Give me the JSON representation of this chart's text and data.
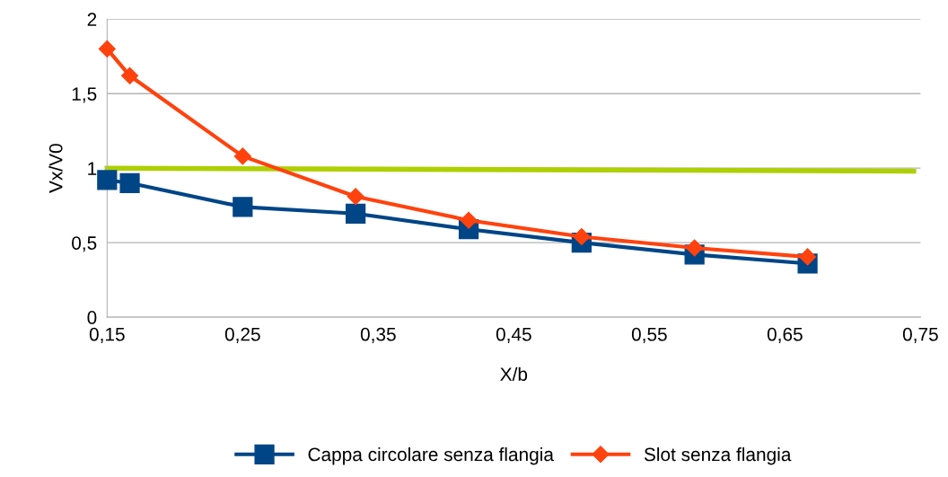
{
  "chart_data": {
    "type": "line",
    "xlabel": "X/b",
    "ylabel": "Vx/V0",
    "xlim": [
      0.15,
      0.75
    ],
    "ylim": [
      0,
      2
    ],
    "xticks": [
      {
        "value": 0.15,
        "label": "0,15"
      },
      {
        "value": 0.25,
        "label": "0,25"
      },
      {
        "value": 0.35,
        "label": "0,35"
      },
      {
        "value": 0.45,
        "label": "0,45"
      },
      {
        "value": 0.55,
        "label": "0,55"
      },
      {
        "value": 0.65,
        "label": "0,65"
      },
      {
        "value": 0.75,
        "label": "0,75"
      }
    ],
    "yticks": [
      0,
      {
        "value": 0.5,
        "label": "0,5"
      },
      1,
      {
        "value": 1.5,
        "label": "1,5"
      },
      2
    ],
    "grid": "y",
    "legend": "bottom",
    "series": [
      {
        "name": "Cappa circolare senza flangia",
        "color": "#004586",
        "marker": "square",
        "x": [
          0.15,
          0.1667,
          0.25,
          0.3333,
          0.4167,
          0.5,
          0.5833,
          0.6667
        ],
        "values": [
          0.92,
          0.9,
          0.74,
          0.695,
          0.59,
          0.5,
          0.42,
          0.36
        ]
      },
      {
        "name": "Slot senza flangia",
        "color": "#ff420e",
        "marker": "diamond",
        "x": [
          0.15,
          0.1667,
          0.25,
          0.3333,
          0.4167,
          0.5,
          0.5833,
          0.6667
        ],
        "values": [
          1.8,
          1.62,
          1.08,
          0.81,
          0.65,
          0.54,
          0.465,
          0.405
        ]
      },
      {
        "color": "#aecf00",
        "marker": "none",
        "x": [
          0.15,
          0.745
        ],
        "values": [
          1.0,
          0.98
        ]
      }
    ]
  }
}
